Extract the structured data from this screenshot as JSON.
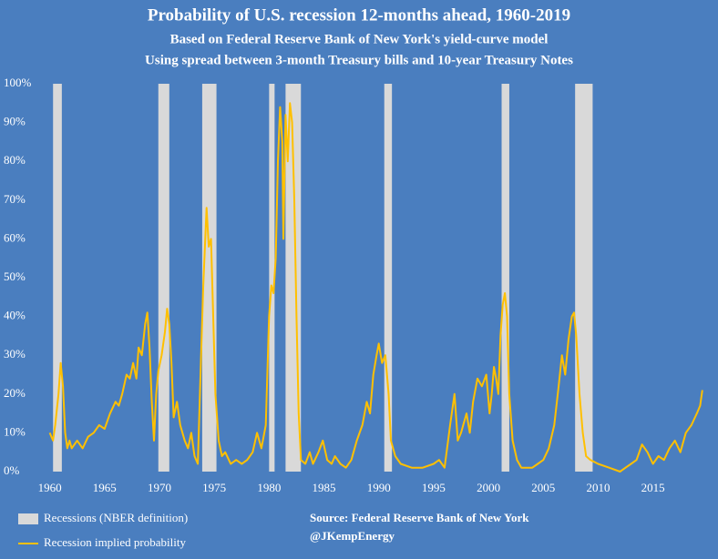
{
  "chart_data": {
    "type": "line",
    "title": "Probability of U.S. recession 12-months ahead, 1960-2019",
    "subtitles": [
      "Based on Federal Reserve Bank of New York's yield-curve model",
      "Using spread between 3-month Treasury bills and 10-year Treasury Notes"
    ],
    "x": [
      1960.0,
      1960.3,
      1960.5,
      1960.8,
      1961.0,
      1961.2,
      1961.4,
      1961.6,
      1961.8,
      1962.0,
      1962.5,
      1963.0,
      1963.5,
      1964.0,
      1964.5,
      1965.0,
      1965.5,
      1966.0,
      1966.3,
      1966.6,
      1967.0,
      1967.3,
      1967.6,
      1967.9,
      1968.1,
      1968.4,
      1968.7,
      1968.9,
      1969.1,
      1969.3,
      1969.5,
      1969.7,
      1969.9,
      1970.2,
      1970.5,
      1970.7,
      1970.9,
      1971.1,
      1971.3,
      1971.6,
      1971.9,
      1972.3,
      1972.6,
      1972.9,
      1973.2,
      1973.5,
      1973.8,
      1974.0,
      1974.3,
      1974.5,
      1974.7,
      1974.9,
      1975.1,
      1975.4,
      1975.7,
      1976.0,
      1976.5,
      1977.0,
      1977.5,
      1978.0,
      1978.5,
      1978.9,
      1979.3,
      1979.7,
      1980.0,
      1980.2,
      1980.4,
      1980.6,
      1980.8,
      1981.0,
      1981.2,
      1981.3,
      1981.5,
      1981.7,
      1981.9,
      1982.1,
      1982.3,
      1982.5,
      1982.7,
      1982.9,
      1983.3,
      1983.7,
      1984.0,
      1984.5,
      1984.9,
      1985.3,
      1985.7,
      1986.0,
      1986.5,
      1987.0,
      1987.5,
      1988.0,
      1988.5,
      1988.9,
      1989.2,
      1989.5,
      1989.8,
      1990.0,
      1990.3,
      1990.6,
      1990.9,
      1991.1,
      1991.5,
      1992.0,
      1993.0,
      1994.0,
      1995.0,
      1995.5,
      1996.0,
      1996.5,
      1996.9,
      1997.2,
      1997.5,
      1998.0,
      1998.3,
      1998.6,
      1999.0,
      1999.4,
      1999.8,
      2000.1,
      2000.3,
      2000.5,
      2000.7,
      2000.9,
      2001.1,
      2001.3,
      2001.5,
      2001.7,
      2001.9,
      2002.2,
      2002.6,
      2003.0,
      2004.0,
      2004.5,
      2005.0,
      2005.5,
      2006.0,
      2006.4,
      2006.7,
      2007.0,
      2007.3,
      2007.6,
      2007.8,
      2008.0,
      2008.3,
      2008.6,
      2008.9,
      2009.3,
      2010.0,
      2011.0,
      2012.0,
      2012.5,
      2013.0,
      2013.5,
      2014.0,
      2014.5,
      2015.0,
      2015.5,
      2016.0,
      2016.5,
      2017.0,
      2017.5,
      2018.0,
      2018.5,
      2019.0,
      2019.3,
      2019.5
    ],
    "series": [
      {
        "name": "Recession implied probability",
        "color": "#ffc000",
        "values": [
          10,
          8,
          12,
          20,
          28,
          22,
          10,
          6,
          8,
          6,
          8,
          6,
          9,
          10,
          12,
          11,
          15,
          18,
          17,
          20,
          25,
          24,
          28,
          24,
          32,
          30,
          38,
          41,
          32,
          18,
          8,
          20,
          26,
          30,
          36,
          42,
          38,
          28,
          14,
          18,
          12,
          8,
          6,
          10,
          4,
          2,
          30,
          48,
          68,
          58,
          60,
          40,
          20,
          8,
          4,
          5,
          2,
          3,
          2,
          3,
          5,
          10,
          6,
          12,
          40,
          48,
          46,
          55,
          80,
          94,
          85,
          60,
          92,
          80,
          95,
          90,
          70,
          40,
          15,
          3,
          2,
          5,
          2,
          5,
          8,
          3,
          2,
          4,
          2,
          1,
          3,
          8,
          12,
          18,
          15,
          25,
          30,
          33,
          28,
          30,
          20,
          8,
          4,
          2,
          1,
          1,
          2,
          3,
          1,
          12,
          20,
          8,
          10,
          15,
          10,
          18,
          24,
          22,
          25,
          15,
          20,
          27,
          24,
          20,
          35,
          43,
          46,
          40,
          20,
          8,
          3,
          1,
          1,
          2,
          3,
          6,
          12,
          22,
          30,
          25,
          34,
          40,
          41,
          35,
          20,
          10,
          4,
          3,
          2,
          1,
          0,
          1,
          2,
          3,
          7,
          5,
          2,
          4,
          3,
          6,
          8,
          5,
          10,
          12,
          15,
          17,
          21
        ]
      }
    ],
    "recessions": {
      "name": "Recessions (NBER definition)",
      "color": "#d9d9d9",
      "periods": [
        [
          1960.3,
          1961.1
        ],
        [
          1969.9,
          1970.9
        ],
        [
          1973.9,
          1975.2
        ],
        [
          1980.0,
          1980.5
        ],
        [
          1981.5,
          1982.9
        ],
        [
          1990.5,
          1991.2
        ],
        [
          2001.2,
          2001.9
        ],
        [
          2007.9,
          2009.5
        ]
      ]
    },
    "xlim": [
      1959.7,
      2019.6
    ],
    "ylim": [
      0,
      100
    ],
    "xticks": [
      1960,
      1965,
      1970,
      1975,
      1980,
      1985,
      1990,
      1995,
      2000,
      2005,
      2010,
      2015
    ],
    "yticks": [
      {
        "value": 0,
        "label": "0%"
      },
      {
        "value": 10,
        "label": "10%"
      },
      {
        "value": 20,
        "label": "20%"
      },
      {
        "value": 30,
        "label": "30%"
      },
      {
        "value": 40,
        "label": "40%"
      },
      {
        "value": 50,
        "label": "50%"
      },
      {
        "value": 60,
        "label": "60%"
      },
      {
        "value": 70,
        "label": "70%"
      },
      {
        "value": 80,
        "label": "80%"
      },
      {
        "value": 90,
        "label": "90%"
      },
      {
        "value": 100,
        "label": "100%"
      }
    ],
    "source": "Source: Federal Reserve Bank of New York",
    "credit": "@JKempEnergy"
  }
}
